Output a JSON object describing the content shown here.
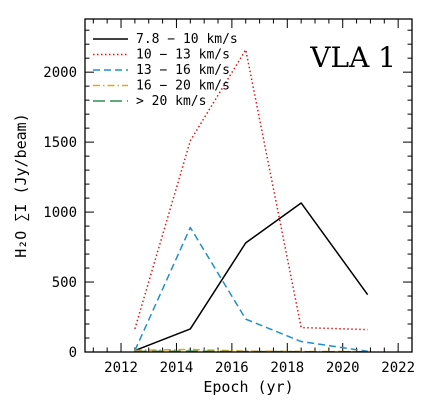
{
  "chart_data": {
    "type": "line",
    "annotation": "VLA 1",
    "xlabel": "Epoch (yr)",
    "ylabel": "H₂O ∑I (Jy/beam)",
    "xlim": [
      2010.7,
      2022.5
    ],
    "ylim": [
      0,
      2380
    ],
    "xticks": [
      2012,
      2014,
      2016,
      2018,
      2020,
      2022
    ],
    "yticks": [
      0,
      500,
      1000,
      1500,
      2000
    ],
    "legend_position": "top-left",
    "series": [
      {
        "name": "7.8 − 10 km/s",
        "color": "#000000",
        "dash": "",
        "x": [
          2012.5,
          2014.5,
          2016.5,
          2018.5,
          2020.9
        ],
        "y": [
          10,
          165,
          780,
          1065,
          410
        ]
      },
      {
        "name": "10 − 13 km/s",
        "color": "#e8141a",
        "dash": "1.5 2.5",
        "x": [
          2012.5,
          2014.5,
          2016.5,
          2018.5,
          2020.9
        ],
        "y": [
          165,
          1510,
          2160,
          175,
          160
        ]
      },
      {
        "name": "13 − 16 km/s",
        "color": "#1f8fcc",
        "dash": "7 4",
        "x": [
          2012.5,
          2014.5,
          2016.5,
          2018.5,
          2020.9
        ],
        "y": [
          10,
          890,
          235,
          75,
          5
        ]
      },
      {
        "name": "16 − 20 km/s",
        "color": "#e8a317",
        "dash": "7 3 1.5 3",
        "x": [
          2012.5,
          2014.5,
          2016.5,
          2018.5,
          2020.9
        ],
        "y": [
          12,
          18,
          6,
          4,
          3
        ]
      },
      {
        "name": "> 20 km/s",
        "color": "#2e8b57",
        "dash": "12 5",
        "x": [
          2012.5,
          2014.5,
          2016.5,
          2018.5,
          2020.9
        ],
        "y": [
          4,
          6,
          3,
          2,
          2
        ]
      }
    ]
  }
}
